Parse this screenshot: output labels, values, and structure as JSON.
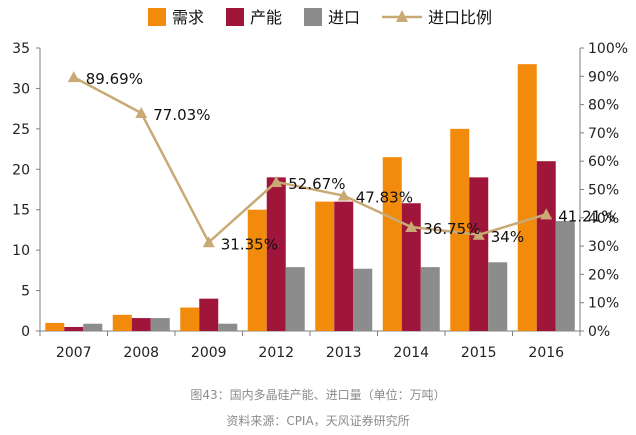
{
  "chart_data": {
    "type": "bar",
    "categories": [
      "2007",
      "2008",
      "2009",
      "2012",
      "2013",
      "2014",
      "2015",
      "2016"
    ],
    "series": [
      {
        "name": "需求",
        "color": "#f28b0c",
        "values": [
          1.0,
          2.0,
          2.9,
          15.0,
          16.0,
          21.5,
          25.0,
          33.0
        ]
      },
      {
        "name": "产能",
        "color": "#a0163a",
        "values": [
          0.5,
          1.6,
          4.0,
          19.0,
          16.0,
          15.8,
          19.0,
          21.0
        ]
      },
      {
        "name": "进口",
        "color": "#8c8c8c",
        "values": [
          0.9,
          1.6,
          0.9,
          7.9,
          7.7,
          7.9,
          8.5,
          13.6
        ]
      }
    ],
    "line_series": {
      "name": "进口比例",
      "color": "#c9aa74",
      "axis": "right",
      "values": [
        89.69,
        77.03,
        31.35,
        52.67,
        47.83,
        36.75,
        34,
        41.21
      ],
      "labels": [
        "89.69%",
        "77.03%",
        "31.35%",
        "52.67%",
        "47.83%",
        "36.75%",
        "34%",
        "41.21%"
      ]
    },
    "y_left": {
      "min": 0,
      "max": 35,
      "ticks": [
        "0",
        "5",
        "10",
        "15",
        "20",
        "25",
        "30",
        "35"
      ]
    },
    "y_right": {
      "min": 0,
      "max": 100,
      "ticks": [
        "0%",
        "10%",
        "20%",
        "30%",
        "40%",
        "50%",
        "60%",
        "70%",
        "80%",
        "90%",
        "100%"
      ]
    },
    "legend_position": "top"
  },
  "caption": {
    "figure": "图43：国内多晶硅产能、进口量（单位：万吨）",
    "source": "资料来源：CPIA，天风证券研究所"
  }
}
